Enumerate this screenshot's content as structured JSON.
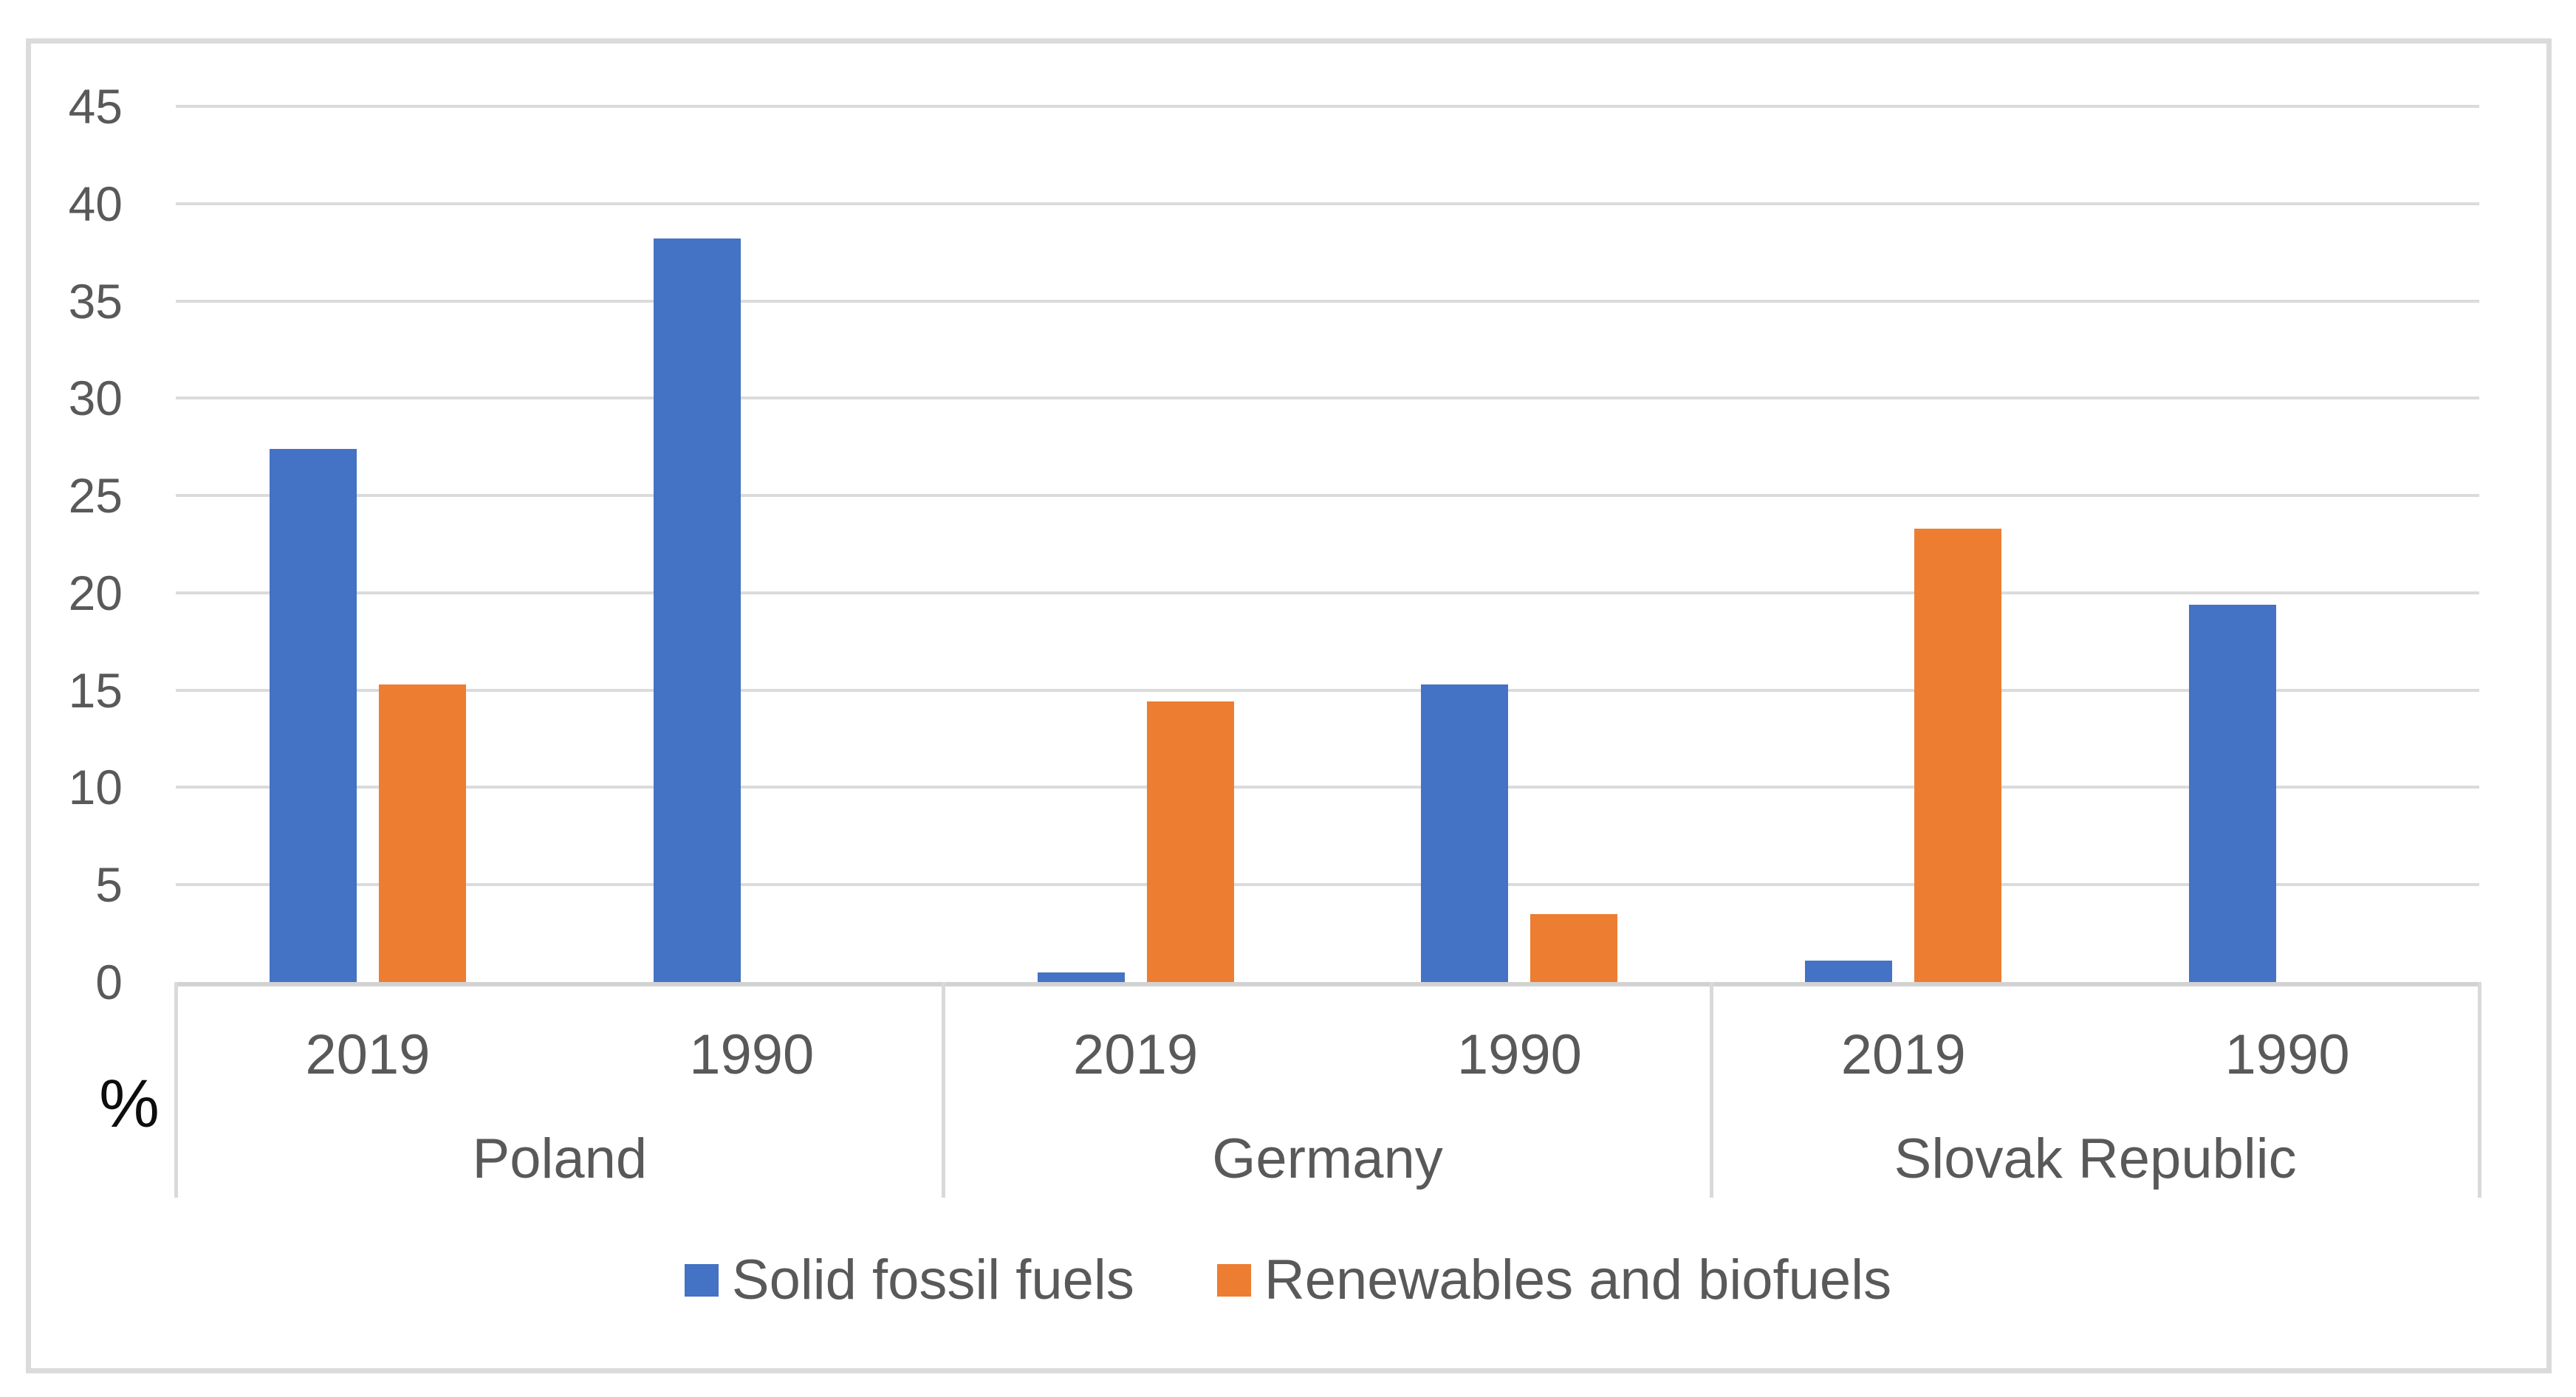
{
  "chart_data": {
    "type": "bar",
    "title": "",
    "ylabel": "%",
    "xlabel": "",
    "ylim": [
      0,
      45
    ],
    "ytick_step": 5,
    "yticks": [
      0,
      5,
      10,
      15,
      20,
      25,
      30,
      35,
      40,
      45
    ],
    "grid": true,
    "legend_position": "bottom",
    "categories": [
      {
        "group": "Poland",
        "year": "2019"
      },
      {
        "group": "Poland",
        "year": "1990"
      },
      {
        "group": "Germany",
        "year": "2019"
      },
      {
        "group": "Germany",
        "year": "1990"
      },
      {
        "group": "Slovak Republic",
        "year": "2019"
      },
      {
        "group": "Slovak Republic",
        "year": "1990"
      }
    ],
    "series": [
      {
        "name": "Solid fossil fuels",
        "color": "#4472C4",
        "values": [
          27.4,
          38.2,
          0.5,
          15.3,
          1.1,
          19.4
        ]
      },
      {
        "name": "Renewables and biofuels",
        "color": "#ED7D31",
        "values": [
          15.3,
          null,
          14.4,
          3.5,
          23.3,
          null
        ]
      }
    ],
    "colors": {
      "gridline": "#DBDBDB",
      "axis_line": "#D2D2D2",
      "tick_text": "#595959",
      "ylabel_text": "#0d0d0d",
      "frame_border": "#DBDBDB"
    }
  }
}
